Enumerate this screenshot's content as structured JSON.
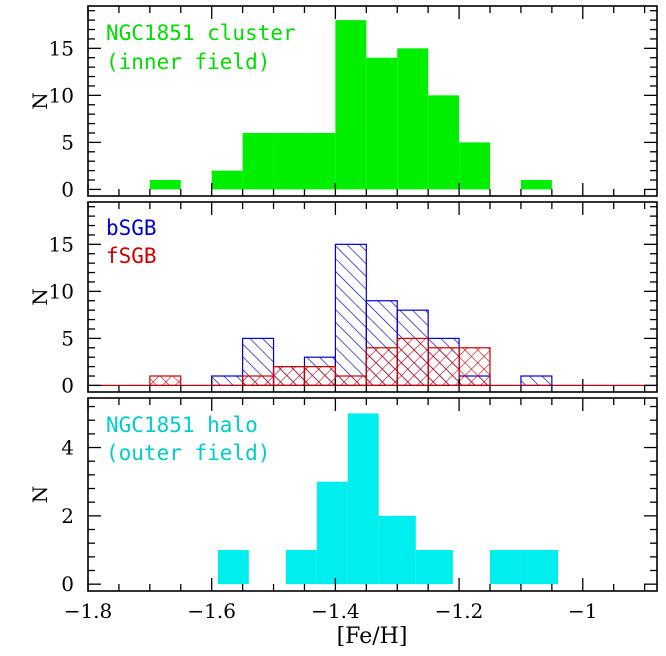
{
  "chart_data": [
    {
      "type": "bar",
      "panel": "top",
      "ylabel": "N",
      "xlabel": "",
      "xlim": [
        -1.8,
        -0.88
      ],
      "ylim": [
        -0.7,
        19.5
      ],
      "yticks": [
        0,
        5,
        10,
        15
      ],
      "annotations": [
        "NGC1851 cluster",
        "(inner field)"
      ],
      "annotation_color": "#00dd00",
      "series": [
        {
          "color": "#00ee00",
          "style": "solid",
          "bins": [
            {
              "lo": -1.7,
              "hi": -1.65,
              "count": 1
            },
            {
              "lo": -1.6,
              "hi": -1.55,
              "count": 2
            },
            {
              "lo": -1.55,
              "hi": -1.5,
              "count": 6
            },
            {
              "lo": -1.5,
              "hi": -1.45,
              "count": 6
            },
            {
              "lo": -1.45,
              "hi": -1.4,
              "count": 6
            },
            {
              "lo": -1.4,
              "hi": -1.35,
              "count": 18
            },
            {
              "lo": -1.35,
              "hi": -1.3,
              "count": 14
            },
            {
              "lo": -1.3,
              "hi": -1.25,
              "count": 15
            },
            {
              "lo": -1.25,
              "hi": -1.2,
              "count": 10
            },
            {
              "lo": -1.2,
              "hi": -1.15,
              "count": 5
            },
            {
              "lo": -1.1,
              "hi": -1.05,
              "count": 1
            }
          ]
        }
      ]
    },
    {
      "type": "bar",
      "panel": "middle",
      "ylabel": "N",
      "xlabel": "",
      "xlim": [
        -1.8,
        -0.88
      ],
      "ylim": [
        -0.7,
        19.5
      ],
      "yticks": [
        0,
        5,
        10,
        15
      ],
      "series": [
        {
          "name": "bSGB",
          "color": "#0000cc",
          "style": "hatch-diag-down",
          "bins": [
            {
              "lo": -1.6,
              "hi": -1.55,
              "count": 1
            },
            {
              "lo": -1.55,
              "hi": -1.5,
              "count": 5
            },
            {
              "lo": -1.5,
              "hi": -1.45,
              "count": 2
            },
            {
              "lo": -1.45,
              "hi": -1.4,
              "count": 3
            },
            {
              "lo": -1.4,
              "hi": -1.35,
              "count": 15
            },
            {
              "lo": -1.35,
              "hi": -1.3,
              "count": 9
            },
            {
              "lo": -1.3,
              "hi": -1.25,
              "count": 8
            },
            {
              "lo": -1.25,
              "hi": -1.2,
              "count": 5
            },
            {
              "lo": -1.2,
              "hi": -1.15,
              "count": 1
            },
            {
              "lo": -1.1,
              "hi": -1.05,
              "count": 1
            }
          ]
        },
        {
          "name": "fSGB",
          "color": "#cc0000",
          "style": "hatch-crosshatch",
          "bins": [
            {
              "lo": -1.7,
              "hi": -1.65,
              "count": 1
            },
            {
              "lo": -1.55,
              "hi": -1.5,
              "count": 1
            },
            {
              "lo": -1.5,
              "hi": -1.45,
              "count": 2
            },
            {
              "lo": -1.45,
              "hi": -1.4,
              "count": 2
            },
            {
              "lo": -1.4,
              "hi": -1.35,
              "count": 1
            },
            {
              "lo": -1.35,
              "hi": -1.3,
              "count": 4
            },
            {
              "lo": -1.3,
              "hi": -1.25,
              "count": 5
            },
            {
              "lo": -1.25,
              "hi": -1.2,
              "count": 4
            },
            {
              "lo": -1.2,
              "hi": -1.15,
              "count": 4
            }
          ]
        }
      ]
    },
    {
      "type": "bar",
      "panel": "bottom",
      "ylabel": "N",
      "xlabel": "[Fe/H]",
      "xlim": [
        -1.8,
        -0.88
      ],
      "ylim": [
        -0.2,
        5.45
      ],
      "yticks": [
        0,
        2,
        4
      ],
      "xticks": [
        -1.8,
        -1.6,
        -1.4,
        -1.2,
        -1
      ],
      "xtick_labels": [
        "−1.8",
        "−1.6",
        "−1.4",
        "−1.2",
        "−1"
      ],
      "annotations": [
        "NGC1851 halo",
        "(outer field)"
      ],
      "annotation_color": "#00cccc",
      "series": [
        {
          "color": "#00eeee",
          "style": "solid",
          "bins": [
            {
              "lo": -1.59,
              "hi": -1.54,
              "count": 1
            },
            {
              "lo": -1.48,
              "hi": -1.43,
              "count": 1
            },
            {
              "lo": -1.43,
              "hi": -1.38,
              "count": 3
            },
            {
              "lo": -1.38,
              "hi": -1.33,
              "count": 5
            },
            {
              "lo": -1.33,
              "hi": -1.27,
              "count": 2
            },
            {
              "lo": -1.27,
              "hi": -1.21,
              "count": 1
            },
            {
              "lo": -1.15,
              "hi": -1.1,
              "count": 1
            },
            {
              "lo": -1.1,
              "hi": -1.04,
              "count": 1
            }
          ]
        }
      ]
    }
  ]
}
